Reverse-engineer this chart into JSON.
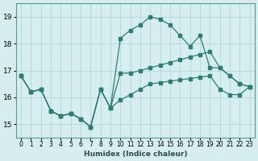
{
  "xlabel": "Humidex (Indice chaleur)",
  "x": [
    0,
    1,
    2,
    3,
    4,
    5,
    6,
    7,
    8,
    9,
    10,
    11,
    12,
    13,
    14,
    15,
    16,
    17,
    18,
    19,
    20,
    21,
    22,
    23
  ],
  "line1": [
    16.8,
    16.2,
    16.3,
    15.5,
    15.3,
    15.4,
    15.2,
    14.9,
    16.3,
    15.6,
    16.9,
    16.9,
    17.0,
    17.1,
    17.2,
    17.3,
    17.4,
    17.5,
    17.6,
    17.7,
    17.1,
    16.8,
    16.5,
    16.4
  ],
  "line2": [
    16.8,
    16.2,
    16.3,
    15.5,
    15.3,
    15.4,
    15.2,
    14.9,
    16.3,
    15.6,
    18.2,
    18.5,
    18.7,
    19.0,
    18.9,
    18.7,
    18.3,
    17.9,
    18.3,
    17.1,
    17.1,
    16.8,
    16.5,
    16.4
  ],
  "line3": [
    16.8,
    16.2,
    16.3,
    15.5,
    15.3,
    15.4,
    15.2,
    14.9,
    16.3,
    15.6,
    15.9,
    16.1,
    16.3,
    16.5,
    16.55,
    16.6,
    16.65,
    16.7,
    16.75,
    16.8,
    16.3,
    16.1,
    16.1,
    16.4
  ],
  "bg_color": "#d6eef0",
  "line_color": "#2e7d72",
  "ylim": [
    14.5,
    19.5
  ],
  "xlim": [
    -0.5,
    23.5
  ],
  "yticks": [
    15,
    16,
    17,
    18,
    19
  ],
  "grid_color": "#b0d8dc"
}
